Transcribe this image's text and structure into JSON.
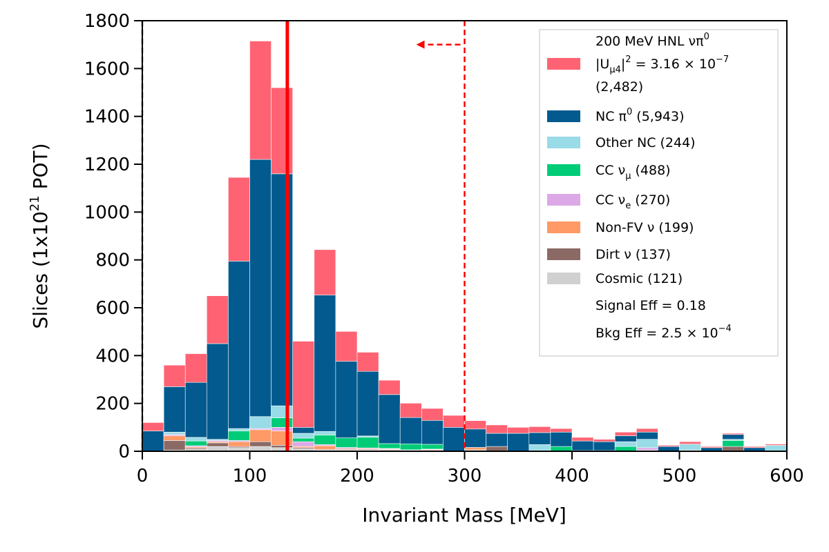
{
  "chart_data": {
    "type": "bar",
    "stacked": true,
    "xlabel": "Invariant Mass [MeV]",
    "ylabel": {
      "main": "Slices (1x10",
      "sup": "21",
      "end": " POT)"
    },
    "xlim": [
      0,
      600
    ],
    "ylim": [
      0,
      1800
    ],
    "x_ticks": [
      0,
      100,
      200,
      300,
      400,
      500,
      600
    ],
    "y_ticks": [
      0,
      200,
      400,
      600,
      800,
      1000,
      1200,
      1400,
      1600,
      1800
    ],
    "bin_edges": [
      0,
      20,
      40,
      60,
      80,
      100,
      120,
      140,
      160,
      180,
      200,
      220,
      240,
      260,
      280,
      300,
      320,
      340,
      360,
      380,
      400,
      420,
      440,
      460,
      480,
      500,
      520,
      540,
      560,
      580,
      600
    ],
    "grid": false,
    "legend_position": "top-right",
    "series": [
      {
        "key": "cosmic",
        "color": "#d0d0d0",
        "values": [
          0,
          5,
          8,
          20,
          15,
          20,
          15,
          10,
          5,
          5,
          5,
          3,
          3,
          3,
          0,
          3,
          0,
          0,
          3,
          0,
          3,
          0,
          0,
          5,
          0,
          5,
          0,
          0,
          0,
          0
        ]
      },
      {
        "key": "dirt",
        "color": "#8b6a65",
        "values": [
          0,
          40,
          5,
          15,
          5,
          20,
          10,
          5,
          3,
          3,
          3,
          3,
          0,
          0,
          0,
          3,
          20,
          0,
          0,
          0,
          0,
          3,
          0,
          0,
          0,
          0,
          0,
          20,
          0,
          0
        ]
      },
      {
        "key": "nonfv",
        "color": "#ff9966",
        "values": [
          0,
          20,
          5,
          5,
          20,
          50,
          60,
          5,
          15,
          3,
          3,
          3,
          0,
          3,
          0,
          10,
          0,
          0,
          0,
          0,
          0,
          0,
          0,
          0,
          0,
          0,
          0,
          0,
          0,
          0
        ]
      },
      {
        "key": "cce",
        "color": "#dda8e6",
        "values": [
          0,
          5,
          5,
          5,
          5,
          5,
          15,
          20,
          5,
          5,
          3,
          3,
          3,
          3,
          0,
          0,
          0,
          0,
          0,
          0,
          0,
          0,
          0,
          10,
          0,
          0,
          0,
          0,
          0,
          0
        ]
      },
      {
        "key": "ccmu",
        "color": "#00cc77",
        "values": [
          0,
          0,
          20,
          0,
          40,
          0,
          40,
          15,
          40,
          40,
          45,
          20,
          25,
          20,
          0,
          0,
          0,
          0,
          0,
          20,
          0,
          0,
          20,
          0,
          0,
          0,
          0,
          25,
          0,
          0
        ]
      },
      {
        "key": "othernc",
        "color": "#99dbe6",
        "values": [
          0,
          10,
          15,
          5,
          10,
          50,
          50,
          20,
          15,
          0,
          5,
          0,
          0,
          0,
          0,
          0,
          0,
          0,
          25,
          0,
          0,
          0,
          20,
          35,
          0,
          25,
          0,
          5,
          0,
          25
        ]
      },
      {
        "key": "ncpi0",
        "color": "#025a8e",
        "values": [
          85,
          190,
          230,
          400,
          700,
          1075,
          970,
          25,
          570,
          320,
          270,
          205,
          110,
          100,
          100,
          77,
          55,
          75,
          50,
          60,
          40,
          37,
          25,
          30,
          20,
          0,
          15,
          20,
          15,
          0
        ]
      },
      {
        "key": "signal",
        "color": "#ff6373",
        "values": [
          35,
          90,
          120,
          200,
          350,
          495,
          360,
          360,
          190,
          125,
          80,
          60,
          60,
          50,
          50,
          35,
          35,
          25,
          25,
          15,
          15,
          10,
          15,
          15,
          5,
          10,
          5,
          5,
          5,
          5
        ]
      }
    ],
    "vertical_lines": [
      {
        "x": 135,
        "color": "#ff0000",
        "style": "solid"
      },
      {
        "x": 0,
        "color": "#ff0000",
        "style": "dashed"
      },
      {
        "x": 300,
        "color": "#ff0000",
        "style": "dashed"
      }
    ],
    "arrow": {
      "x_from": 300,
      "x_to": 255,
      "y": 1700,
      "color": "#ff0000"
    },
    "legend": [
      {
        "key": "signal",
        "color": "#ff6373",
        "lines": [
          {
            "main": "200 MeV HNL νπ",
            "sup": "0"
          },
          {
            "main": "|U",
            "sub": "μ4",
            "end": "|",
            "sup2": "2",
            "end2": " = 3.16 × 10",
            "sup3": "−7"
          },
          {
            "main": " (2,482)"
          }
        ]
      },
      {
        "key": "ncpi0",
        "color": "#025a8e",
        "lines": [
          {
            "main": "NC π",
            "sup": "0",
            "end": " (5,943)"
          }
        ]
      },
      {
        "key": "othernc",
        "color": "#99dbe6",
        "lines": [
          {
            "main": "Other NC (244)"
          }
        ]
      },
      {
        "key": "ccmu",
        "color": "#00cc77",
        "lines": [
          {
            "main": "CC ν",
            "sub": "μ",
            "end": " (488)"
          }
        ]
      },
      {
        "key": "cce",
        "color": "#dda8e6",
        "lines": [
          {
            "main": "CC ν",
            "sub": "e",
            "end": " (270)"
          }
        ]
      },
      {
        "key": "nonfv",
        "color": "#ff9966",
        "lines": [
          {
            "main": "Non-FV ν (199)"
          }
        ]
      },
      {
        "key": "dirt",
        "color": "#8b6a65",
        "lines": [
          {
            "main": "Dirt ν (137)"
          }
        ]
      },
      {
        "key": "cosmic",
        "color": "#d0d0d0",
        "lines": [
          {
            "main": "Cosmic (121)"
          }
        ]
      },
      {
        "key": "sigeff",
        "color": null,
        "lines": [
          {
            "main": "Signal Eff = 0.18"
          }
        ]
      },
      {
        "key": "bkgeff",
        "color": null,
        "lines": [
          {
            "main": "Bkg Eff = 2.5 × 10",
            "sup": "−4"
          }
        ]
      }
    ]
  }
}
